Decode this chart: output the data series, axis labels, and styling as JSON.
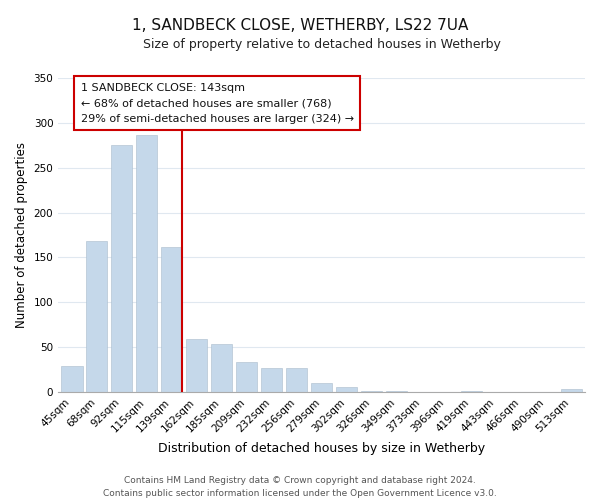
{
  "title": "1, SANDBECK CLOSE, WETHERBY, LS22 7UA",
  "subtitle": "Size of property relative to detached houses in Wetherby",
  "xlabel": "Distribution of detached houses by size in Wetherby",
  "ylabel": "Number of detached properties",
  "footer_line1": "Contains HM Land Registry data © Crown copyright and database right 2024.",
  "footer_line2": "Contains public sector information licensed under the Open Government Licence v3.0.",
  "categories": [
    "45sqm",
    "68sqm",
    "92sqm",
    "115sqm",
    "139sqm",
    "162sqm",
    "185sqm",
    "209sqm",
    "232sqm",
    "256sqm",
    "279sqm",
    "302sqm",
    "326sqm",
    "349sqm",
    "373sqm",
    "396sqm",
    "419sqm",
    "443sqm",
    "466sqm",
    "490sqm",
    "513sqm"
  ],
  "values": [
    29,
    168,
    275,
    287,
    162,
    59,
    54,
    33,
    27,
    27,
    10,
    5,
    1,
    1,
    0,
    0,
    1,
    0,
    0,
    0,
    3
  ],
  "bar_color": "#c5d8ea",
  "highlight_line_color": "#cc0000",
  "highlight_index": 4,
  "ylim": [
    0,
    350
  ],
  "yticks": [
    0,
    50,
    100,
    150,
    200,
    250,
    300,
    350
  ],
  "annotation_title": "1 SANDBECK CLOSE: 143sqm",
  "annotation_line1": "← 68% of detached houses are smaller (768)",
  "annotation_line2": "29% of semi-detached houses are larger (324) →",
  "annotation_box_facecolor": "#ffffff",
  "annotation_box_edgecolor": "#cc0000",
  "grid_color": "#e0e8f0",
  "title_fontsize": 11,
  "subtitle_fontsize": 9,
  "xlabel_fontsize": 9,
  "ylabel_fontsize": 8.5,
  "tick_fontsize": 7.5,
  "footer_fontsize": 6.5
}
